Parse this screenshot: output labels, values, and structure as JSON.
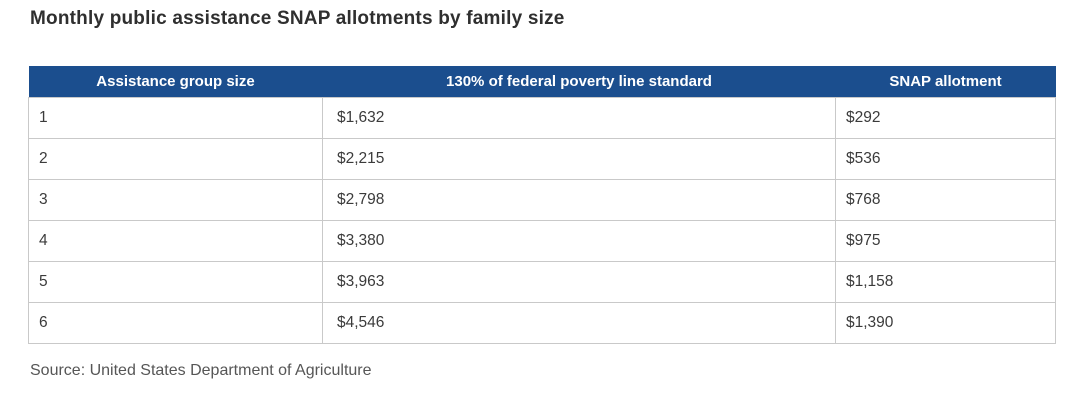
{
  "colors": {
    "header_bg": "#1b4e8e",
    "header_text": "#ffffff",
    "border": "#c9c9c9",
    "body_text": "#3b3b3b",
    "title_text": "#2f2f2f",
    "source_text": "#565656"
  },
  "chart_data": {
    "type": "table",
    "title": "Monthly public assistance SNAP allotments by family size",
    "columns": [
      "Assistance group size",
      "130% of federal poverty line standard",
      "SNAP allotment"
    ],
    "rows": [
      [
        "1",
        "$1,632",
        "$292"
      ],
      [
        "2",
        "$2,215",
        "$536"
      ],
      [
        "3",
        "$2,798",
        "$768"
      ],
      [
        "4",
        "$3,380",
        "$975"
      ],
      [
        "5",
        "$3,963",
        "$1,158"
      ],
      [
        "6",
        "$4,546",
        "$1,390"
      ]
    ],
    "source": "Source: United States Department of Agriculture",
    "layout": {
      "header_style": "solid dark blue bar, centered white bold labels, no internal dividers",
      "body_style": "white rows, light gray 1px grid borders, left-aligned values"
    }
  }
}
